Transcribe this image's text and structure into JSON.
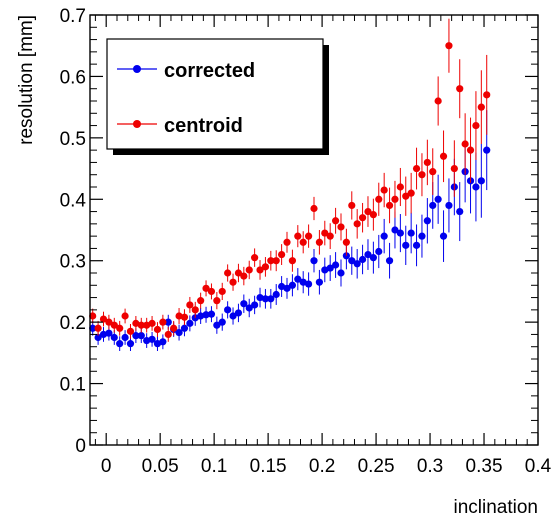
{
  "chart_data": {
    "type": "scatter",
    "title": "",
    "xlabel": "inclination",
    "ylabel": "resolution [mm]",
    "xlim": [
      -0.015,
      0.4
    ],
    "ylim": [
      0,
      0.7
    ],
    "x_ticks": [
      0,
      0.05,
      0.1,
      0.15,
      0.2,
      0.25,
      0.3,
      0.35,
      0.4
    ],
    "x_tick_labels": [
      "0",
      "0.05",
      "0.1",
      "0.15",
      "0.2",
      "0.25",
      "0.3",
      "0.35",
      "0.4"
    ],
    "y_ticks": [
      0,
      0.1,
      0.2,
      0.3,
      0.4,
      0.5,
      0.6,
      0.7
    ],
    "y_tick_labels": [
      "0",
      "0.1",
      "0.2",
      "0.3",
      "0.4",
      "0.5",
      "0.6",
      "0.7"
    ],
    "grid": false,
    "legend_position": "top-left",
    "series": [
      {
        "name": "corrected",
        "color": "#0000ee",
        "x": [
          -0.0125,
          -0.0075,
          -0.0025,
          0.0025,
          0.0075,
          0.0125,
          0.0175,
          0.0225,
          0.0275,
          0.0325,
          0.0375,
          0.0425,
          0.0475,
          0.0525,
          0.0575,
          0.0625,
          0.0675,
          0.0725,
          0.0775,
          0.0825,
          0.0875,
          0.0925,
          0.0975,
          0.1025,
          0.1075,
          0.1125,
          0.1175,
          0.1225,
          0.1275,
          0.1325,
          0.1375,
          0.1425,
          0.1475,
          0.1525,
          0.1575,
          0.1625,
          0.1675,
          0.1725,
          0.1775,
          0.1825,
          0.1875,
          0.1925,
          0.1975,
          0.2025,
          0.2075,
          0.2125,
          0.2175,
          0.2225,
          0.2275,
          0.2325,
          0.2375,
          0.2425,
          0.2475,
          0.2525,
          0.2575,
          0.2625,
          0.2675,
          0.2725,
          0.2775,
          0.2825,
          0.2875,
          0.2925,
          0.2975,
          0.3025,
          0.3075,
          0.3125,
          0.3175,
          0.3225,
          0.3275,
          0.3325,
          0.3375,
          0.3425,
          0.3475,
          0.3525
        ],
        "y": [
          0.19,
          0.175,
          0.18,
          0.182,
          0.175,
          0.165,
          0.175,
          0.165,
          0.178,
          0.178,
          0.17,
          0.172,
          0.165,
          0.168,
          0.2,
          0.188,
          0.183,
          0.19,
          0.198,
          0.207,
          0.21,
          0.212,
          0.213,
          0.195,
          0.2,
          0.22,
          0.21,
          0.215,
          0.23,
          0.223,
          0.228,
          0.24,
          0.238,
          0.238,
          0.245,
          0.258,
          0.255,
          0.26,
          0.27,
          0.265,
          0.262,
          0.3,
          0.265,
          0.285,
          0.288,
          0.293,
          0.28,
          0.308,
          0.3,
          0.295,
          0.302,
          0.31,
          0.305,
          0.315,
          0.34,
          0.3,
          0.35,
          0.345,
          0.325,
          0.345,
          0.325,
          0.34,
          0.365,
          0.39,
          0.4,
          0.34,
          0.39,
          0.42,
          0.38,
          0.445,
          0.43,
          0.42,
          0.43,
          0.48
        ],
        "err": [
          0.012,
          0.012,
          0.012,
          0.012,
          0.012,
          0.012,
          0.012,
          0.012,
          0.012,
          0.012,
          0.012,
          0.012,
          0.012,
          0.012,
          0.012,
          0.012,
          0.013,
          0.013,
          0.013,
          0.013,
          0.013,
          0.013,
          0.013,
          0.014,
          0.014,
          0.014,
          0.014,
          0.015,
          0.015,
          0.015,
          0.015,
          0.016,
          0.016,
          0.016,
          0.017,
          0.017,
          0.017,
          0.018,
          0.018,
          0.018,
          0.019,
          0.019,
          0.02,
          0.02,
          0.021,
          0.021,
          0.022,
          0.022,
          0.023,
          0.024,
          0.024,
          0.025,
          0.026,
          0.027,
          0.028,
          0.029,
          0.03,
          0.031,
          0.032,
          0.033,
          0.034,
          0.035,
          0.037,
          0.038,
          0.04,
          0.042,
          0.044,
          0.046,
          0.048,
          0.05,
          0.053,
          0.056,
          0.06,
          0.065
        ]
      },
      {
        "name": "centroid",
        "color": "#ee0000",
        "x": [
          -0.0125,
          -0.0075,
          -0.0025,
          0.0025,
          0.0075,
          0.0125,
          0.0175,
          0.0225,
          0.0275,
          0.0325,
          0.0375,
          0.0425,
          0.0475,
          0.0525,
          0.0575,
          0.0625,
          0.0675,
          0.0725,
          0.0775,
          0.0825,
          0.0875,
          0.0925,
          0.0975,
          0.1025,
          0.1075,
          0.1125,
          0.1175,
          0.1225,
          0.1275,
          0.1325,
          0.1375,
          0.1425,
          0.1475,
          0.1525,
          0.1575,
          0.1625,
          0.1675,
          0.1725,
          0.1775,
          0.1825,
          0.1875,
          0.1925,
          0.1975,
          0.2025,
          0.2075,
          0.2125,
          0.2175,
          0.2225,
          0.2275,
          0.2325,
          0.2375,
          0.2425,
          0.2475,
          0.2525,
          0.2575,
          0.2625,
          0.2675,
          0.2725,
          0.2775,
          0.2825,
          0.2875,
          0.2925,
          0.2975,
          0.3025,
          0.3075,
          0.3125,
          0.3175,
          0.3225,
          0.3275,
          0.3325,
          0.3375,
          0.3425,
          0.3475,
          0.3525
        ],
        "y": [
          0.21,
          0.19,
          0.205,
          0.2,
          0.195,
          0.19,
          0.21,
          0.185,
          0.198,
          0.195,
          0.195,
          0.198,
          0.188,
          0.2,
          0.18,
          0.19,
          0.21,
          0.208,
          0.228,
          0.22,
          0.235,
          0.255,
          0.25,
          0.235,
          0.25,
          0.28,
          0.265,
          0.28,
          0.275,
          0.285,
          0.305,
          0.285,
          0.29,
          0.3,
          0.3,
          0.31,
          0.33,
          0.3,
          0.34,
          0.33,
          0.34,
          0.385,
          0.33,
          0.345,
          0.34,
          0.365,
          0.355,
          0.33,
          0.39,
          0.36,
          0.37,
          0.38,
          0.375,
          0.4,
          0.415,
          0.39,
          0.4,
          0.42,
          0.405,
          0.41,
          0.45,
          0.44,
          0.46,
          0.445,
          0.56,
          0.47,
          0.65,
          0.45,
          0.58,
          0.49,
          0.48,
          0.52,
          0.55,
          0.57
        ],
        "err": [
          0.012,
          0.012,
          0.012,
          0.012,
          0.012,
          0.012,
          0.012,
          0.012,
          0.012,
          0.012,
          0.012,
          0.012,
          0.012,
          0.012,
          0.012,
          0.012,
          0.013,
          0.013,
          0.013,
          0.013,
          0.013,
          0.013,
          0.013,
          0.014,
          0.014,
          0.014,
          0.014,
          0.015,
          0.015,
          0.015,
          0.015,
          0.016,
          0.016,
          0.016,
          0.017,
          0.017,
          0.017,
          0.018,
          0.018,
          0.018,
          0.019,
          0.019,
          0.02,
          0.02,
          0.021,
          0.021,
          0.022,
          0.022,
          0.023,
          0.024,
          0.024,
          0.025,
          0.026,
          0.027,
          0.028,
          0.029,
          0.03,
          0.031,
          0.032,
          0.033,
          0.034,
          0.035,
          0.037,
          0.038,
          0.04,
          0.042,
          0.044,
          0.046,
          0.048,
          0.05,
          0.053,
          0.056,
          0.06,
          0.065
        ]
      }
    ]
  }
}
